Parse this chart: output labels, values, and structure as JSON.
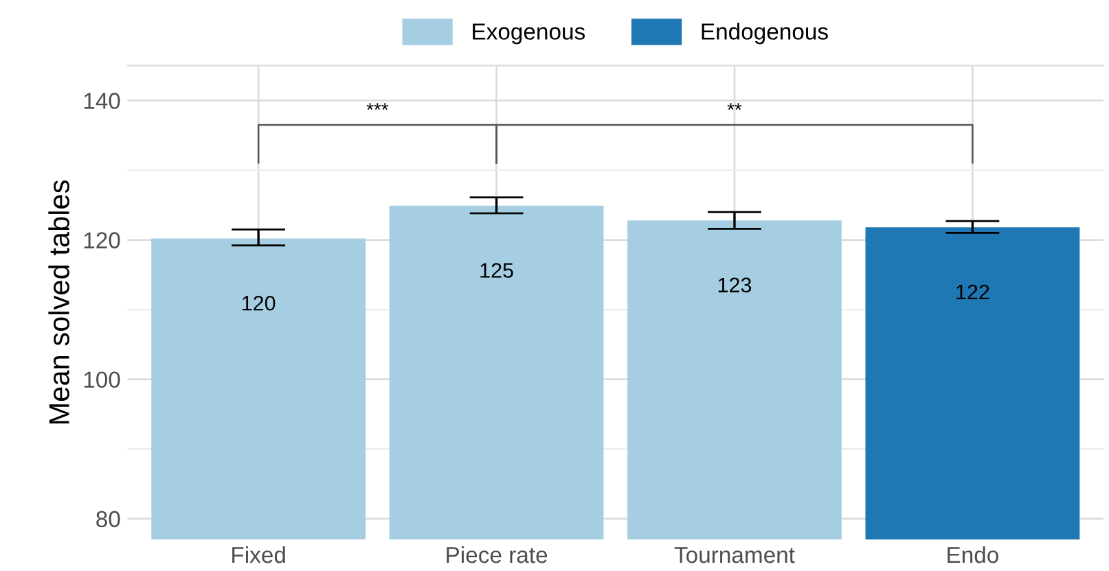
{
  "chart_data": {
    "type": "bar",
    "ylabel": "Mean solved tables",
    "categories": [
      "Fixed",
      "Piece rate",
      "Tournament",
      "Endo"
    ],
    "series": [
      {
        "name": "Exogenous",
        "color": "#a6cee3",
        "values": [
          120.2,
          124.9,
          122.8,
          null
        ],
        "errors": [
          [
            119.2,
            121.5
          ],
          [
            123.8,
            126.1
          ],
          [
            121.6,
            124.0
          ],
          null
        ],
        "value_labels": [
          "120",
          "125",
          "123",
          null
        ]
      },
      {
        "name": "Endogenous",
        "color": "#1f78b4",
        "values": [
          null,
          null,
          null,
          121.8
        ],
        "errors": [
          null,
          null,
          null,
          [
            121.0,
            122.7
          ]
        ],
        "value_labels": [
          null,
          null,
          null,
          "122"
        ]
      }
    ],
    "ylim": [
      77,
      145
    ],
    "yticks": [
      80,
      100,
      120,
      140
    ],
    "grid": true,
    "legend": "top",
    "annotations": [
      {
        "text": "***"
      },
      {
        "text": "**"
      }
    ]
  }
}
